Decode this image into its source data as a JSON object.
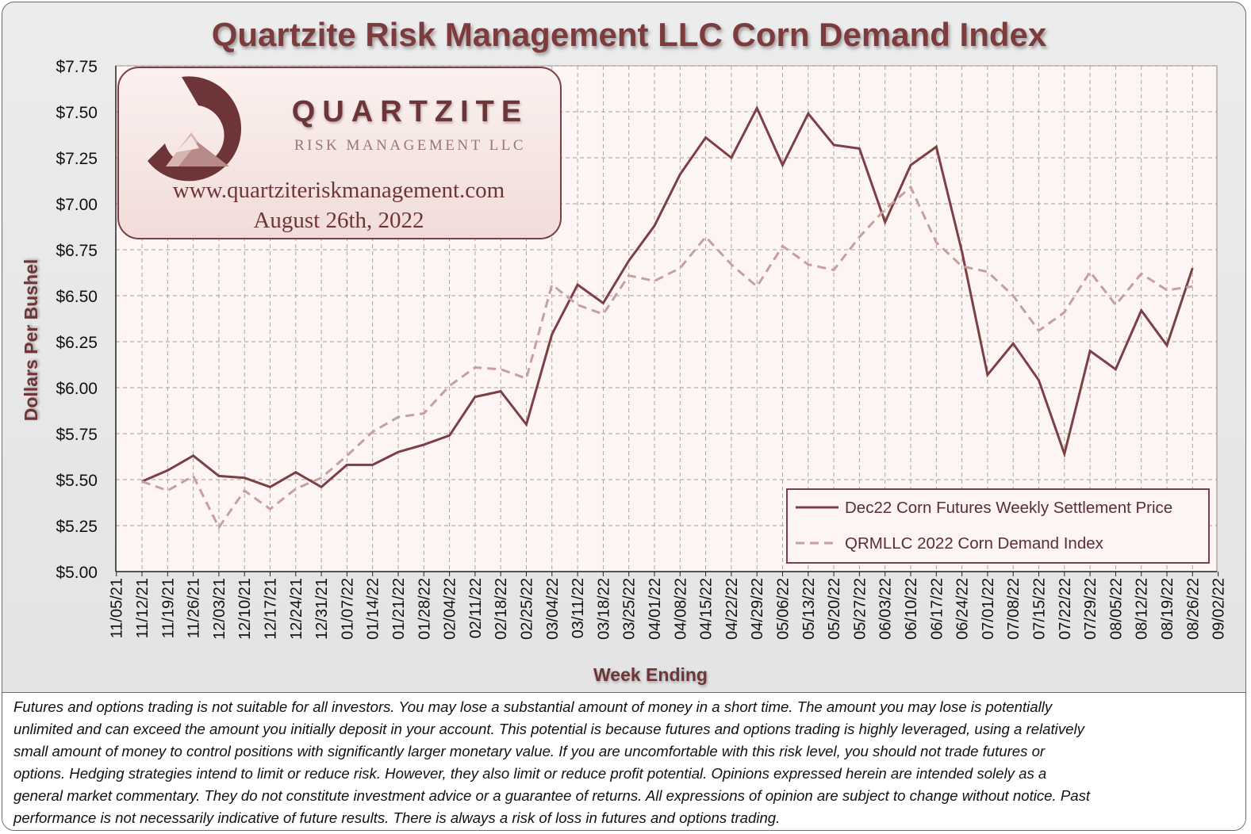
{
  "chart_data": {
    "type": "line",
    "title": "Quartzite Risk Management LLC Corn Demand Index",
    "xlabel": "Week Ending",
    "ylabel": "Dollars Per Bushel",
    "ylim": [
      5.0,
      7.75
    ],
    "yticks": [
      "$5.00",
      "$5.25",
      "$5.50",
      "$5.75",
      "$6.00",
      "$6.25",
      "$6.50",
      "$6.75",
      "$7.00",
      "$7.25",
      "$7.50",
      "$7.75"
    ],
    "categories": [
      "11/05/21",
      "11/12/21",
      "11/19/21",
      "11/26/21",
      "12/03/21",
      "12/10/21",
      "12/17/21",
      "12/24/21",
      "12/31/21",
      "01/07/22",
      "01/14/22",
      "01/21/22",
      "01/28/22",
      "02/04/22",
      "02/11/22",
      "02/18/22",
      "02/25/22",
      "03/04/22",
      "03/11/22",
      "03/18/22",
      "03/25/22",
      "04/01/22",
      "04/08/22",
      "04/15/22",
      "04/22/22",
      "04/29/22",
      "05/06/22",
      "05/13/22",
      "05/20/22",
      "05/27/22",
      "06/03/22",
      "06/10/22",
      "06/17/22",
      "06/24/22",
      "07/01/22",
      "07/08/22",
      "07/15/22",
      "07/22/22",
      "07/29/22",
      "08/05/22",
      "08/12/22",
      "08/19/22",
      "08/26/22",
      "09/02/22"
    ],
    "series": [
      {
        "name": "Dec22 Corn Futures Weekly Settlement Price",
        "style": "solid",
        "color": "#7b3f44",
        "values": [
          null,
          5.49,
          5.55,
          5.63,
          5.52,
          5.51,
          5.46,
          5.54,
          5.46,
          5.58,
          5.58,
          5.65,
          5.69,
          5.74,
          5.95,
          5.98,
          5.8,
          6.29,
          6.56,
          6.46,
          6.69,
          6.88,
          7.16,
          7.36,
          7.25,
          7.52,
          7.21,
          7.49,
          7.32,
          7.3,
          6.9,
          7.21,
          7.31,
          6.74,
          6.07,
          6.24,
          6.04,
          5.64,
          6.2,
          6.1,
          6.42,
          6.23,
          6.65,
          null
        ]
      },
      {
        "name": "QRMLLC 2022 Corn Demand Index",
        "style": "dashed",
        "color": "#c4a09f",
        "values": [
          null,
          5.49,
          5.44,
          5.52,
          5.24,
          5.44,
          5.34,
          5.45,
          5.51,
          5.63,
          5.76,
          5.84,
          5.86,
          6.01,
          6.11,
          6.1,
          6.05,
          6.56,
          6.45,
          6.4,
          6.61,
          6.58,
          6.65,
          6.82,
          6.67,
          6.55,
          6.77,
          6.67,
          6.64,
          6.82,
          6.97,
          7.09,
          6.79,
          6.66,
          6.63,
          6.5,
          6.31,
          6.41,
          6.63,
          6.45,
          6.62,
          6.53,
          6.55,
          null
        ]
      }
    ],
    "legend_position": "lower-right",
    "grid": true
  },
  "logo": {
    "brand": "QUARTZITE",
    "tagline": "RISK MANAGEMENT LLC",
    "url": "www.quartziteriskmanagement.com",
    "date": "August 26th, 2022"
  },
  "disclaimer": [
    "Futures and options trading is not suitable for all investors. You may lose a substantial amount of money in a short time. The amount you may lose is potentially",
    "unlimited and can exceed the amount you initially deposit in your account. This potential is because futures and options trading is highly leveraged, using a relatively",
    "small amount of money to control positions with significantly larger monetary value. If you are uncomfortable with this risk level, you should not trade futures or",
    "options. Hedging strategies intend to limit or reduce risk.  However, they also limit or reduce profit potential. Opinions expressed herein are intended solely as a",
    "general market commentary. They do not constitute investment advice or a guarantee of returns. All expressions of opinion are subject to change without notice. Past",
    "performance is not necessarily indicative of future results. There is always a risk of loss in futures and options trading."
  ],
  "colors": {
    "brand": "#6e3539",
    "plot_bg": "#fdf5f3",
    "price_line": "#7b3f44",
    "index_line": "#c4a09f"
  }
}
